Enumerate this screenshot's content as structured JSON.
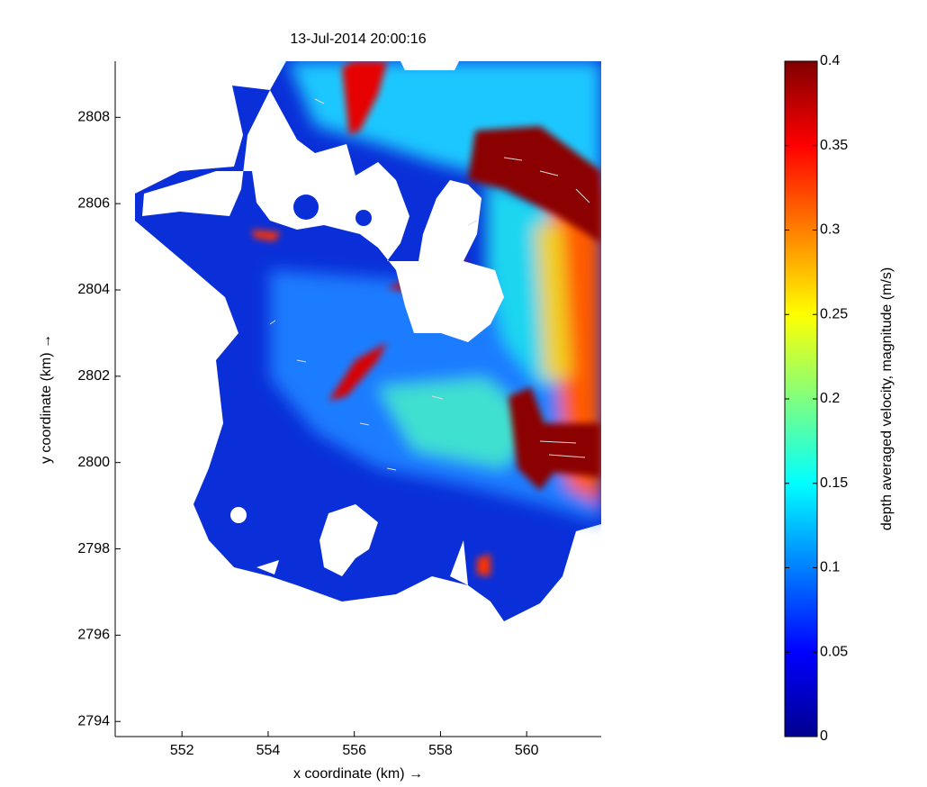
{
  "chart_data": {
    "type": "field",
    "title": "13-Jul-2014 20:00:16",
    "x_label": "x coordinate (km) →",
    "y_label": "y coordinate (km) →",
    "xlim": [
      550.45,
      561.73
    ],
    "ylim": [
      2793.65,
      2809.3
    ],
    "xticks": [
      552,
      554,
      556,
      558,
      560
    ],
    "yticks": [
      2794,
      2796,
      2798,
      2800,
      2802,
      2804,
      2806,
      2808
    ],
    "colorbar": {
      "label": "depth averaged velocity, magnitude (m/s)",
      "colormap": "jet",
      "lim": [
        0,
        0.4
      ],
      "ticks": [
        0,
        0.05,
        0.1,
        0.15,
        0.2,
        0.25,
        0.3,
        0.35,
        0.4
      ]
    }
  }
}
